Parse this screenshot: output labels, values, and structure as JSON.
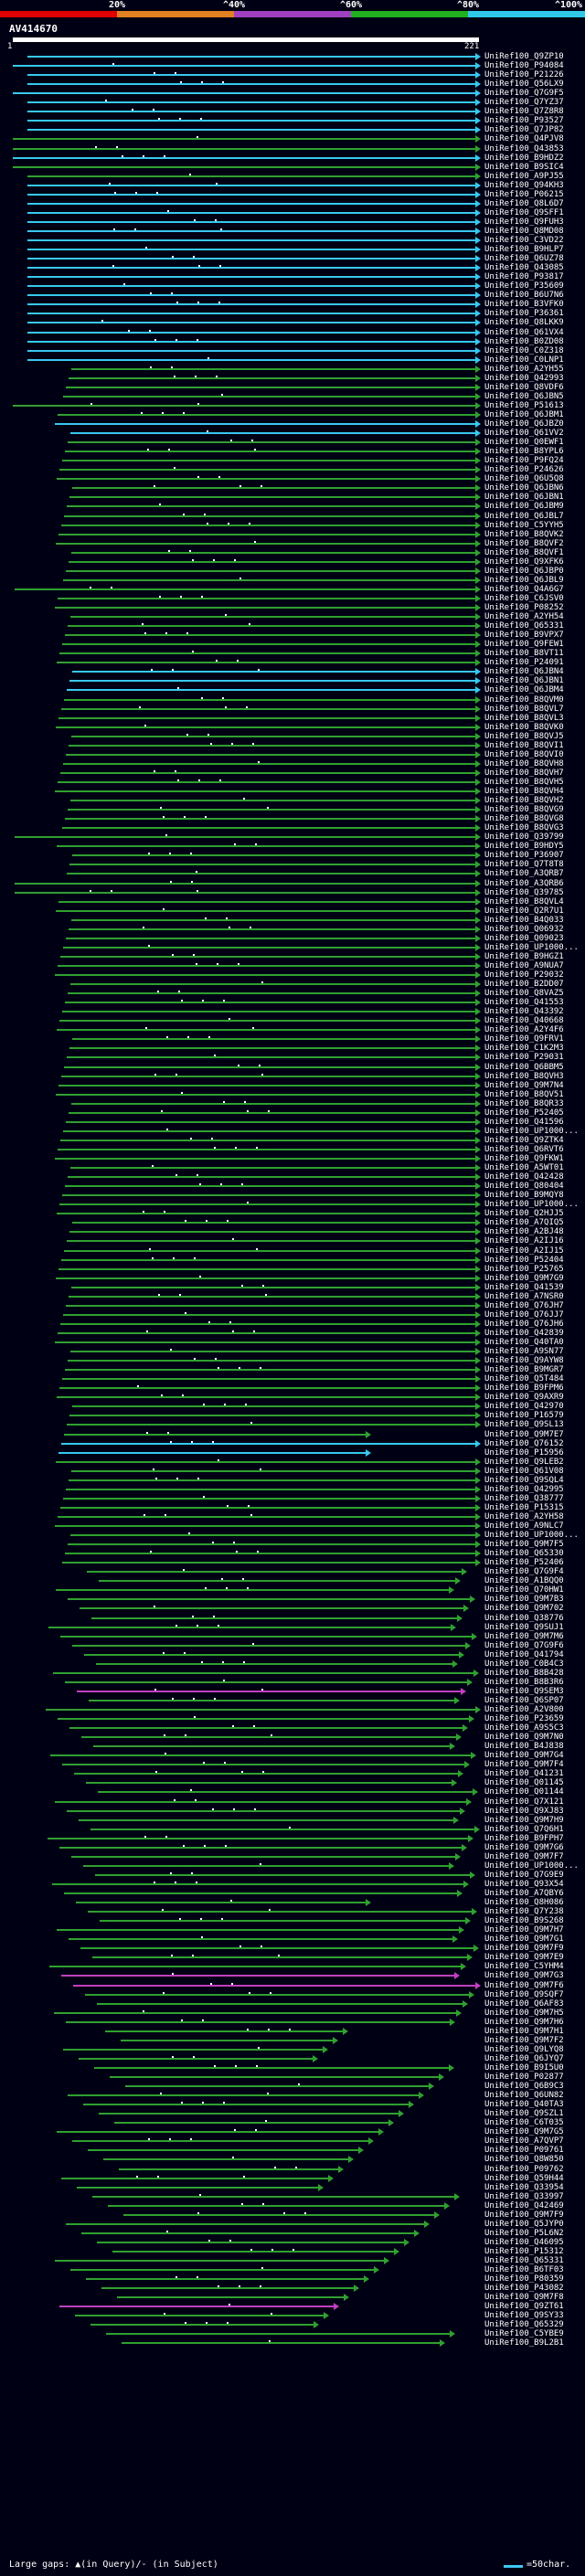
{
  "scale": {
    "labels": [
      "20%",
      "^40%",
      "^60%",
      "^80%",
      "^100%"
    ],
    "colors": [
      "#e00000",
      "#e08020",
      "#a040c0",
      "#20b020",
      "#30c8e8"
    ]
  },
  "query_id": "AV414670",
  "query_start": "1",
  "query_end": "221",
  "legend": {
    "text": "Large gaps: ▲(in Query)/- (in Subject)",
    "right": "=50char."
  },
  "identity_colors": {
    "cyan": "#38c8f0",
    "green": "#30a030",
    "magenta": "#c040c0"
  },
  "hits": [
    "UniRef100_Q9ZP10",
    "UniRef100_P94084",
    "UniRef100_P21226",
    "UniRef100_Q56LX9",
    "UniRef100_Q7G9F5",
    "UniRef100_Q7YZ37",
    "UniRef100_Q7Z8R8",
    "UniRef100_P93527",
    "UniRef100_Q7JP82",
    "UniRef100_Q4PJV8",
    "UniRef100_Q43853",
    "UniRef100_B9HDZ2",
    "UniRef100_B9SIC4",
    "UniRef100_A9PJ55",
    "UniRef100_Q94KH3",
    "UniRef100_P06215",
    "UniRef100_Q8L6D7",
    "UniRef100_Q9SFF1",
    "UniRef100_Q9FUH3",
    "UniRef100_Q8MD08",
    "UniRef100_C3VD22",
    "UniRef100_B9HLP7",
    "UniRef100_Q6UZ78",
    "UniRef100_Q43085",
    "UniRef100_P93817",
    "UniRef100_P35609",
    "UniRef100_B6U7N6",
    "UniRef100_B3VFK0",
    "UniRef100_P36361",
    "UniRef100_Q8LKK9",
    "UniRef100_Q61VX4",
    "UniRef100_B0ZD08",
    "UniRef100_C0Z318",
    "UniRef100_C0LNP1",
    "UniRef100_A2YH55",
    "UniRef100_Q42993",
    "UniRef100_Q8VDF6",
    "UniRef100_Q6JBN5",
    "UniRef100_P51613",
    "UniRef100_Q6JBM1",
    "UniRef100_Q6JBZ0",
    "UniRef100_Q61VV2",
    "UniRef100_Q0EWF1",
    "UniRef100_B8YPL6",
    "UniRef100_P9FQ24",
    "UniRef100_P24626",
    "UniRef100_Q6U5Q8",
    "UniRef100_Q6JBN6",
    "UniRef100_Q6JBN1",
    "UniRef100_Q6JBM9",
    "UniRef100_Q6JBL7",
    "UniRef100_C5YYH5",
    "UniRef100_B8QVK2",
    "UniRef100_B8QVF2",
    "UniRef100_B8QVF1",
    "UniRef100_Q9XFK6",
    "UniRef100_Q6JBP0",
    "UniRef100_Q6JBL9",
    "UniRef100_Q4A6G7",
    "UniRef100_C6JSV0",
    "UniRef100_P08252",
    "UniRef100_A2YH54",
    "UniRef100_Q65331",
    "UniRef100_B9VPX7",
    "UniRef100_Q9FEW1",
    "UniRef100_B8VT11",
    "UniRef100_P24091",
    "UniRef100_Q6JBN4",
    "UniRef100_Q6JBN1",
    "UniRef100_Q6JBM4",
    "UniRef100_B8QVM0",
    "UniRef100_B8QVL7",
    "UniRef100_B8QVL3",
    "UniRef100_B8QVK0",
    "UniRef100_B8QVJ5",
    "UniRef100_B8QVI1",
    "UniRef100_B8QVI0",
    "UniRef100_B8QVH8",
    "UniRef100_B8QVH7",
    "UniRef100_B8QVH5",
    "UniRef100_B8QVH4",
    "UniRef100_B8QVH2",
    "UniRef100_B8QVG9",
    "UniRef100_B8QVG8",
    "UniRef100_B8QVG3",
    "UniRef100_Q39799",
    "UniRef100_B9HDY5",
    "UniRef100_P36907",
    "UniRef100_Q7T8T8",
    "UniRef100_A3QRB7",
    "UniRef100_A3QRB6",
    "UniRef100_Q39785",
    "UniRef100_B8QVL4",
    "UniRef100_Q2R7U1",
    "UniRef100_B4Q033",
    "UniRef100_Q06932",
    "UniRef100_Q09023",
    "UniRef100_UP1000...",
    "UniRef100_B9HGZ1",
    "UniRef100_A9NUA7",
    "UniRef100_P29032",
    "UniRef100_B2DD07",
    "UniRef100_Q8VAZ5",
    "UniRef100_Q41553",
    "UniRef100_Q43392",
    "UniRef100_Q40668",
    "UniRef100_A2Y4F6",
    "UniRef100_Q9FRV1",
    "UniRef100_C1K2M3",
    "UniRef100_P29031",
    "UniRef100_Q6BBM5",
    "UniRef100_B8QVH3",
    "UniRef100_Q9M7N4",
    "UniRef100_B8QV51",
    "UniRef100_B8QR33",
    "UniRef100_P52405",
    "UniRef100_Q41596",
    "UniRef100_UP1000...",
    "UniRef100_Q9ZTK4",
    "UniRef100_Q6RVT6",
    "UniRef100_Q9FKW1",
    "UniRef100_A5WT01",
    "UniRef100_Q42428",
    "UniRef100_Q80404",
    "UniRef100_B9MQY8",
    "UniRef100_UP1000...",
    "UniRef100_Q2HJJ5",
    "UniRef100_A7QIQ5",
    "UniRef100_A2BJ48",
    "UniRef100_A2IJ16",
    "UniRef100_A2IJ15",
    "UniRef100_P52404",
    "UniRef100_P25765",
    "UniRef100_Q9M7G9",
    "UniRef100_Q41539",
    "UniRef100_A7NSR0",
    "UniRef100_Q76JH7",
    "UniRef100_Q76JJ7",
    "UniRef100_Q76JH6",
    "UniRef100_Q42839",
    "UniRef100_Q40TA0",
    "UniRef100_A9SN77",
    "UniRef100_Q9AYW8",
    "UniRef100_B9MGR7",
    "UniRef100_Q5T484",
    "UniRef100_B9FPM6",
    "UniRef100_Q9AXR9",
    "UniRef100_Q42970",
    "UniRef100_P16579",
    "UniRef100_Q9SL13",
    "UniRef100_Q9M7E7",
    "UniRef100_Q76152",
    "UniRef100_P15956",
    "UniRef100_Q9LEB2",
    "UniRef100_Q61V08",
    "UniRef100_Q9SQL4",
    "UniRef100_Q42995",
    "UniRef100_Q38777",
    "UniRef100_P15315",
    "UniRef100_A2YH58",
    "UniRef100_A9NLC7",
    "UniRef100_UP1000...",
    "UniRef100_Q9M7F5",
    "UniRef100_Q65330",
    "UniRef100_P52406",
    "UniRef100_Q7G9F4",
    "UniRef100_A1BQQ0",
    "UniRef100_Q70HW1",
    "UniRef100_Q9M7B3",
    "UniRef100_Q9M702",
    "UniRef100_Q38776",
    "UniRef100_Q9SUJ1",
    "UniRef100_Q9M7M6",
    "UniRef100_Q7G9F6",
    "UniRef100_Q41794",
    "UniRef100_C0B4C3",
    "UniRef100_B8B428",
    "UniRef100_B8B3R6",
    "UniRef100_Q9SEM3",
    "UniRef100_Q6SP07",
    "UniRef100_A2V800",
    "UniRef100_P23659",
    "UniRef100_A9S5C3",
    "UniRef100_Q9M7N0",
    "UniRef100_B4J838",
    "UniRef100_Q9M7G4",
    "UniRef100_Q9M7F4",
    "UniRef100_Q41231",
    "UniRef100_Q01145",
    "UniRef100_Q01144",
    "UniRef100_Q7X121",
    "UniRef100_Q9XJ83",
    "UniRef100_Q9M7H9",
    "UniRef100_Q7Q6H1",
    "UniRef100_B9FPH7",
    "UniRef100_Q9M7G6",
    "UniRef100_Q9M7F7",
    "UniRef100_UP1000...",
    "UniRef100_Q7G9E9",
    "UniRef100_Q93X54",
    "UniRef100_A7QBY6",
    "UniRef100_Q8H086",
    "UniRef100_Q7Y238",
    "UniRef100_B9S268",
    "UniRef100_Q9M7H7",
    "UniRef100_Q9M7G1",
    "UniRef100_Q9M7F9",
    "UniRef100_Q9M7E9",
    "UniRef100_C5YHM4",
    "UniRef100_Q9M7G3",
    "UniRef100_Q9M7F6",
    "UniRef100_Q9SQF7",
    "UniRef100_Q6AF83",
    "UniRef100_Q9M7H5",
    "UniRef100_Q9M7H6",
    "UniRef100_Q9M7H1",
    "UniRef100_Q9M7F2",
    "UniRef100_Q9LYQ8",
    "UniRef100_Q6JYQ7",
    "UniRef100_B9I5U0",
    "UniRef100_P02877",
    "UniRef100_Q6B9C3",
    "UniRef100_Q6UN82",
    "UniRef100_Q40TA3",
    "UniRef100_Q9SZL1",
    "UniRef100_C6T035",
    "UniRef100_Q9M7G5",
    "UniRef100_A7QVP7",
    "UniRef100_P09761",
    "UniRef100_Q8W850",
    "UniRef100_P09762",
    "UniRef100_Q59H44",
    "UniRef100_Q33954",
    "UniRef100_Q33997",
    "UniRef100_Q42469",
    "UniRef100_Q9M7F9",
    "UniRef100_Q5JYP0",
    "UniRef100_P5L6N2",
    "UniRef100_Q46095",
    "UniRef100_P15312",
    "UniRef100_Q65331",
    "UniRef100_B6TF03",
    "UniRef100_P80359",
    "UniRef100_P43082",
    "UniRef100_Q9M7F8",
    "UniRef100_Q9ZT61",
    "UniRef100_Q9SY33",
    "UniRef100_Q65329",
    "UniRef100_C5YBE9",
    "UniRef100_B9L2B1"
  ]
}
